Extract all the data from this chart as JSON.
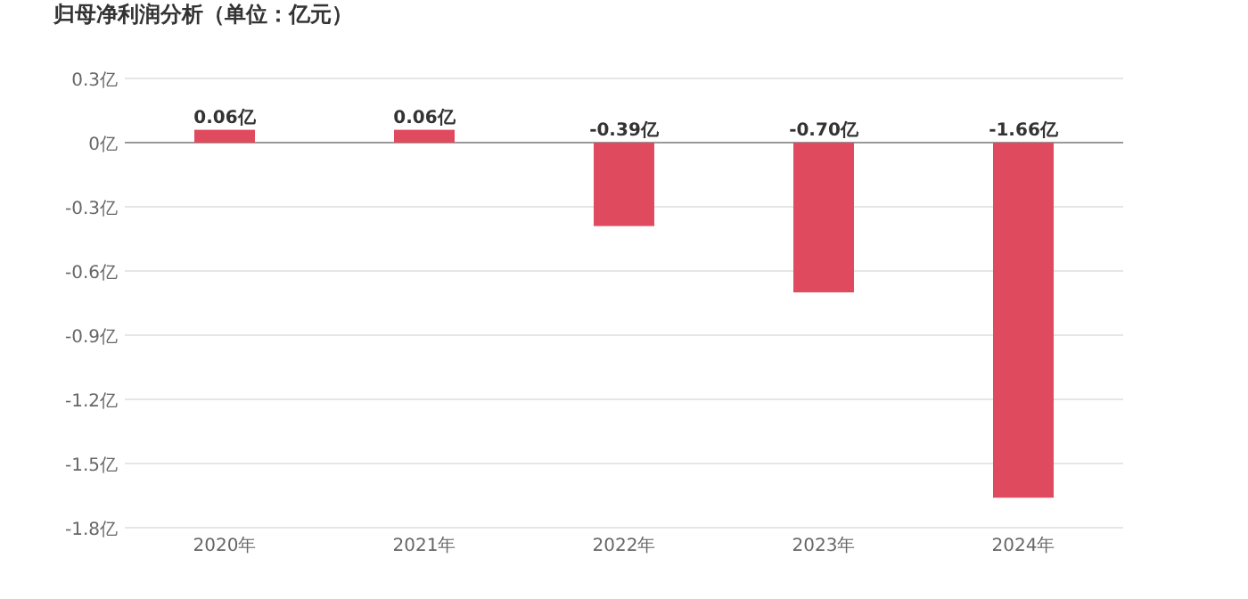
{
  "chart_data": {
    "type": "bar",
    "title": "归母净利润分析（单位：亿元）",
    "categories": [
      "2020年",
      "2021年",
      "2022年",
      "2023年",
      "2024年"
    ],
    "values": [
      0.06,
      0.06,
      -0.39,
      -0.7,
      -1.66
    ],
    "value_labels": [
      "0.06亿",
      "0.06亿",
      "-0.39亿",
      "-0.70亿",
      "-1.66亿"
    ],
    "color": "#e04a5f",
    "ylim": [
      -1.8,
      0.3
    ],
    "yticks": [
      {
        "value": 0.3,
        "label": "0.3亿"
      },
      {
        "value": 0,
        "label": "0亿"
      },
      {
        "value": -0.3,
        "label": "-0.3亿"
      },
      {
        "value": -0.6,
        "label": "-0.6亿"
      },
      {
        "value": -0.9,
        "label": "-0.9亿"
      },
      {
        "value": -1.2,
        "label": "-1.2亿"
      },
      {
        "value": -1.5,
        "label": "-1.5亿"
      },
      {
        "value": -1.8,
        "label": "-1.8亿"
      }
    ],
    "grid": "y"
  }
}
